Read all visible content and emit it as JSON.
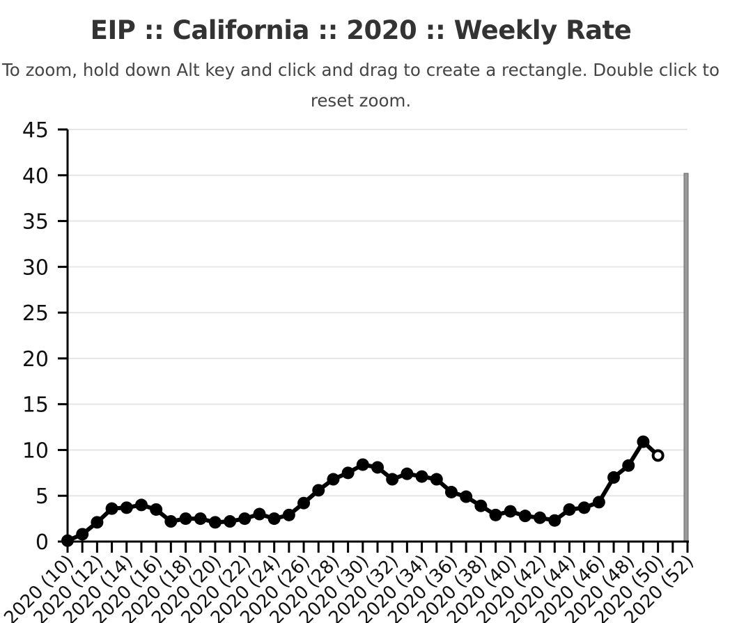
{
  "chart_data": {
    "type": "line",
    "title": "EIP :: California :: 2020 :: Weekly Rate",
    "subtitle_line1": "To zoom, hold down Alt key and click and drag to create a rectangle. Double click to",
    "subtitle_line2": "reset zoom.",
    "xlabel": "",
    "ylabel": "",
    "ylim": [
      0,
      45
    ],
    "y_ticks": [
      "0",
      "5",
      "10",
      "15",
      "20",
      "25",
      "30",
      "35",
      "40",
      "45"
    ],
    "x_tick_labels": [
      "2020 (10)",
      "2020 (12)",
      "2020 (14)",
      "2020 (16)",
      "2020 (18)",
      "2020 (20)",
      "2020 (22)",
      "2020 (24)",
      "2020 (26)",
      "2020 (28)",
      "2020 (30)",
      "2020 (32)",
      "2020 (34)",
      "2020 (36)",
      "2020 (38)",
      "2020 (40)",
      "2020 (42)",
      "2020 (44)",
      "2020 (46)",
      "2020 (48)",
      "2020 (50)",
      "2020 (52)"
    ],
    "x_range": [
      10,
      52
    ],
    "grid": true,
    "series": [
      {
        "color": "#000000",
        "weeks": [
          10,
          11,
          12,
          13,
          14,
          15,
          16,
          17,
          18,
          19,
          20,
          21,
          22,
          23,
          24,
          25,
          26,
          27,
          28,
          29,
          30,
          31,
          32,
          33,
          34,
          35,
          36,
          37,
          38,
          39,
          40,
          41,
          42,
          43,
          44,
          45,
          46,
          47,
          48,
          49,
          50
        ],
        "values": [
          0.1,
          0.8,
          2.1,
          3.6,
          3.7,
          4.0,
          3.5,
          2.2,
          2.5,
          2.5,
          2.1,
          2.2,
          2.5,
          3.0,
          2.5,
          2.9,
          4.2,
          5.6,
          6.8,
          7.5,
          8.4,
          8.1,
          6.8,
          7.4,
          7.1,
          6.8,
          5.4,
          4.9,
          3.9,
          2.9,
          3.3,
          2.8,
          2.6,
          2.3,
          3.5,
          3.7,
          4.3,
          7.0,
          8.3,
          10.9,
          9.4
        ],
        "last_point_open": true
      }
    ]
  }
}
